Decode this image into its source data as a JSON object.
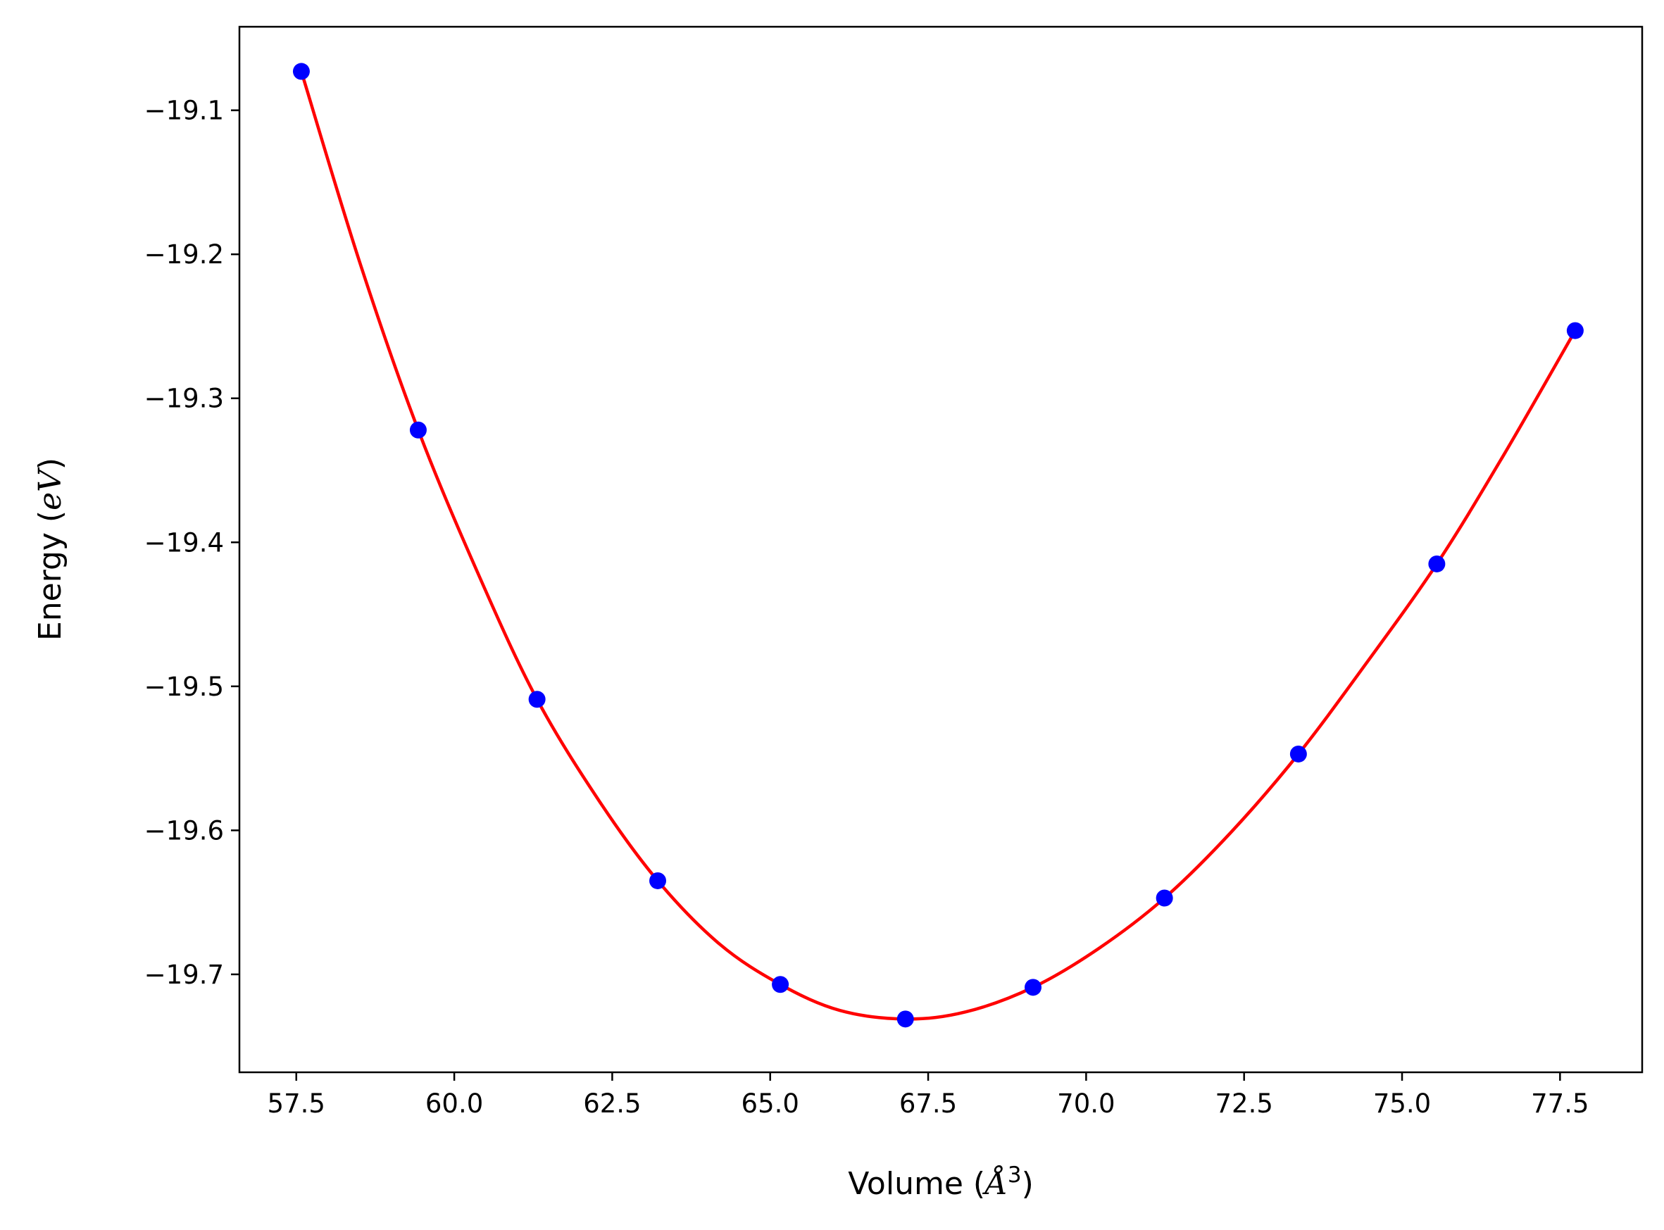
{
  "chart_data": {
    "type": "scatter",
    "title": "",
    "xlabel": {
      "prefix": "Volume (",
      "symbol": "Å",
      "superscript": "3",
      "suffix": ")"
    },
    "ylabel": {
      "prefix": "Energy (",
      "symbol": "eV",
      "suffix": ")"
    },
    "xlim": [
      56.6,
      78.8
    ],
    "ylim": [
      -19.768,
      -19.042
    ],
    "xticks": [
      57.5,
      60.0,
      62.5,
      65.0,
      67.5,
      70.0,
      72.5,
      75.0,
      77.5
    ],
    "xtick_labels": [
      "57.5",
      "60.0",
      "62.5",
      "65.0",
      "67.5",
      "70.0",
      "72.5",
      "75.0",
      "77.5"
    ],
    "yticks": [
      -19.1,
      -19.2,
      -19.3,
      -19.4,
      -19.5,
      -19.6,
      -19.7
    ],
    "ytick_labels": [
      "−19.1",
      "−19.2",
      "−19.3",
      "−19.4",
      "−19.5",
      "−19.6",
      "−19.7"
    ],
    "grid": false,
    "series": [
      {
        "kind": "points",
        "color": "#0000ff",
        "x": [
          57.58,
          59.43,
          61.31,
          63.22,
          65.16,
          67.14,
          69.16,
          71.24,
          73.36,
          75.55,
          77.74
        ],
        "y": [
          -19.073,
          -19.322,
          -19.509,
          -19.635,
          -19.707,
          -19.731,
          -19.709,
          -19.647,
          -19.547,
          -19.415,
          -19.253
        ]
      },
      {
        "kind": "fit-curve",
        "color": "#ff0000",
        "x": [
          57.58,
          58.5,
          59.43,
          60.4,
          61.31,
          62.3,
          63.22,
          64.2,
          65.16,
          66.1,
          67.14,
          68.1,
          69.16,
          70.2,
          71.24,
          72.3,
          73.36,
          74.4,
          75.55,
          76.6,
          77.74
        ],
        "y": [
          -19.073,
          -19.205,
          -19.322,
          -19.424,
          -19.509,
          -19.58,
          -19.635,
          -19.679,
          -19.707,
          -19.725,
          -19.731,
          -19.726,
          -19.709,
          -19.682,
          -19.647,
          -19.601,
          -19.547,
          -19.486,
          -19.415,
          -19.34,
          -19.253
        ]
      }
    ]
  }
}
